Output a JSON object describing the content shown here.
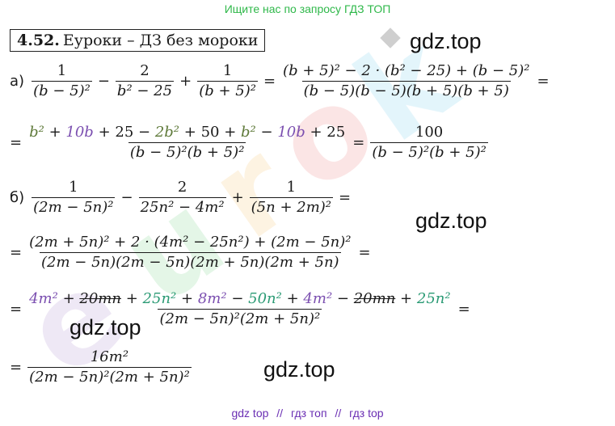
{
  "header": {
    "banner": "Ищите нас по запросу ГДЗ ТОП"
  },
  "task": {
    "number": "4.52.",
    "title": "Еуроки  –  ДЗ без мороки"
  },
  "watermarks": {
    "w1": "gdz.top",
    "w2": "gdz.top",
    "w3": "gdz.top",
    "w4": "gdz.top"
  },
  "footer": {
    "link1": "gdz top",
    "sep1": "//",
    "link2": "гдз топ",
    "sep2": "//",
    "link3": "гдз top"
  },
  "math": {
    "label_a": "а)",
    "label_b": "б)",
    "a1": {
      "f1_num": "1",
      "f1_den": "(b − 5)²",
      "op1": "−",
      "f2_num": "2",
      "f2_den": "b² − 25",
      "op2": "+",
      "f3_num": "1",
      "f3_den": "(b + 5)²",
      "eq": "=",
      "f4_num": "(b + 5)² − 2 · (b² − 25) + (b − 5)²",
      "f4_den": "(b − 5)(b − 5)(b + 5)(b + 5)",
      "eq_end": "="
    },
    "a2": {
      "eq": "=",
      "n1": "b²",
      "n2": "+",
      "n3": "10b",
      "n4": "+ 25 −",
      "n5": "2b²",
      "n6": "+ 50 +",
      "n7": "b²",
      "n8": "−",
      "n9": "10b",
      "n10": "+ 25",
      "den": "(b − 5)²(b + 5)²",
      "eq2": "=",
      "r_num": "100",
      "r_den": "(b − 5)²(b + 5)²"
    },
    "b1": {
      "f1_num": "1",
      "f1_den": "(2m − 5n)²",
      "op1": "−",
      "f2_num": "2",
      "f2_den": "25n² − 4m²",
      "op2": "+",
      "f3_num": "1",
      "f3_den": "(5n + 2m)²",
      "eq": "="
    },
    "b2": {
      "eq": "=",
      "num": "(2m + 5n)² + 2 · (4m² − 25n²) + (2m − 5n)²",
      "den": "(2m − 5n)(2m − 5n)(2m + 5n)(2m + 5n)",
      "eq_end": "="
    },
    "b3": {
      "eq": "=",
      "t1": "4m²",
      "t2": "+",
      "t3": "20mn",
      "t4": "+",
      "t5": "25n²",
      "t6": "+",
      "t7": "8m²",
      "t8": "−",
      "t9": "50n²",
      "t10": "+",
      "t11": "4m²",
      "t12": "−",
      "t13": "20mn",
      "t14": "+",
      "t15": "25n²",
      "den": "(2m − 5n)²(2m + 5n)²",
      "eq_end": "="
    },
    "b4": {
      "eq": "=",
      "num": "16m²",
      "den": "(2m − 5n)²(2m + 5n)²"
    }
  },
  "colors": {
    "banner": "#2fb84a",
    "footer": "#6a2eb3",
    "green_term": "#5f7a3a",
    "purple_term": "#7b4fb0",
    "teal_term": "#2a9a74"
  }
}
